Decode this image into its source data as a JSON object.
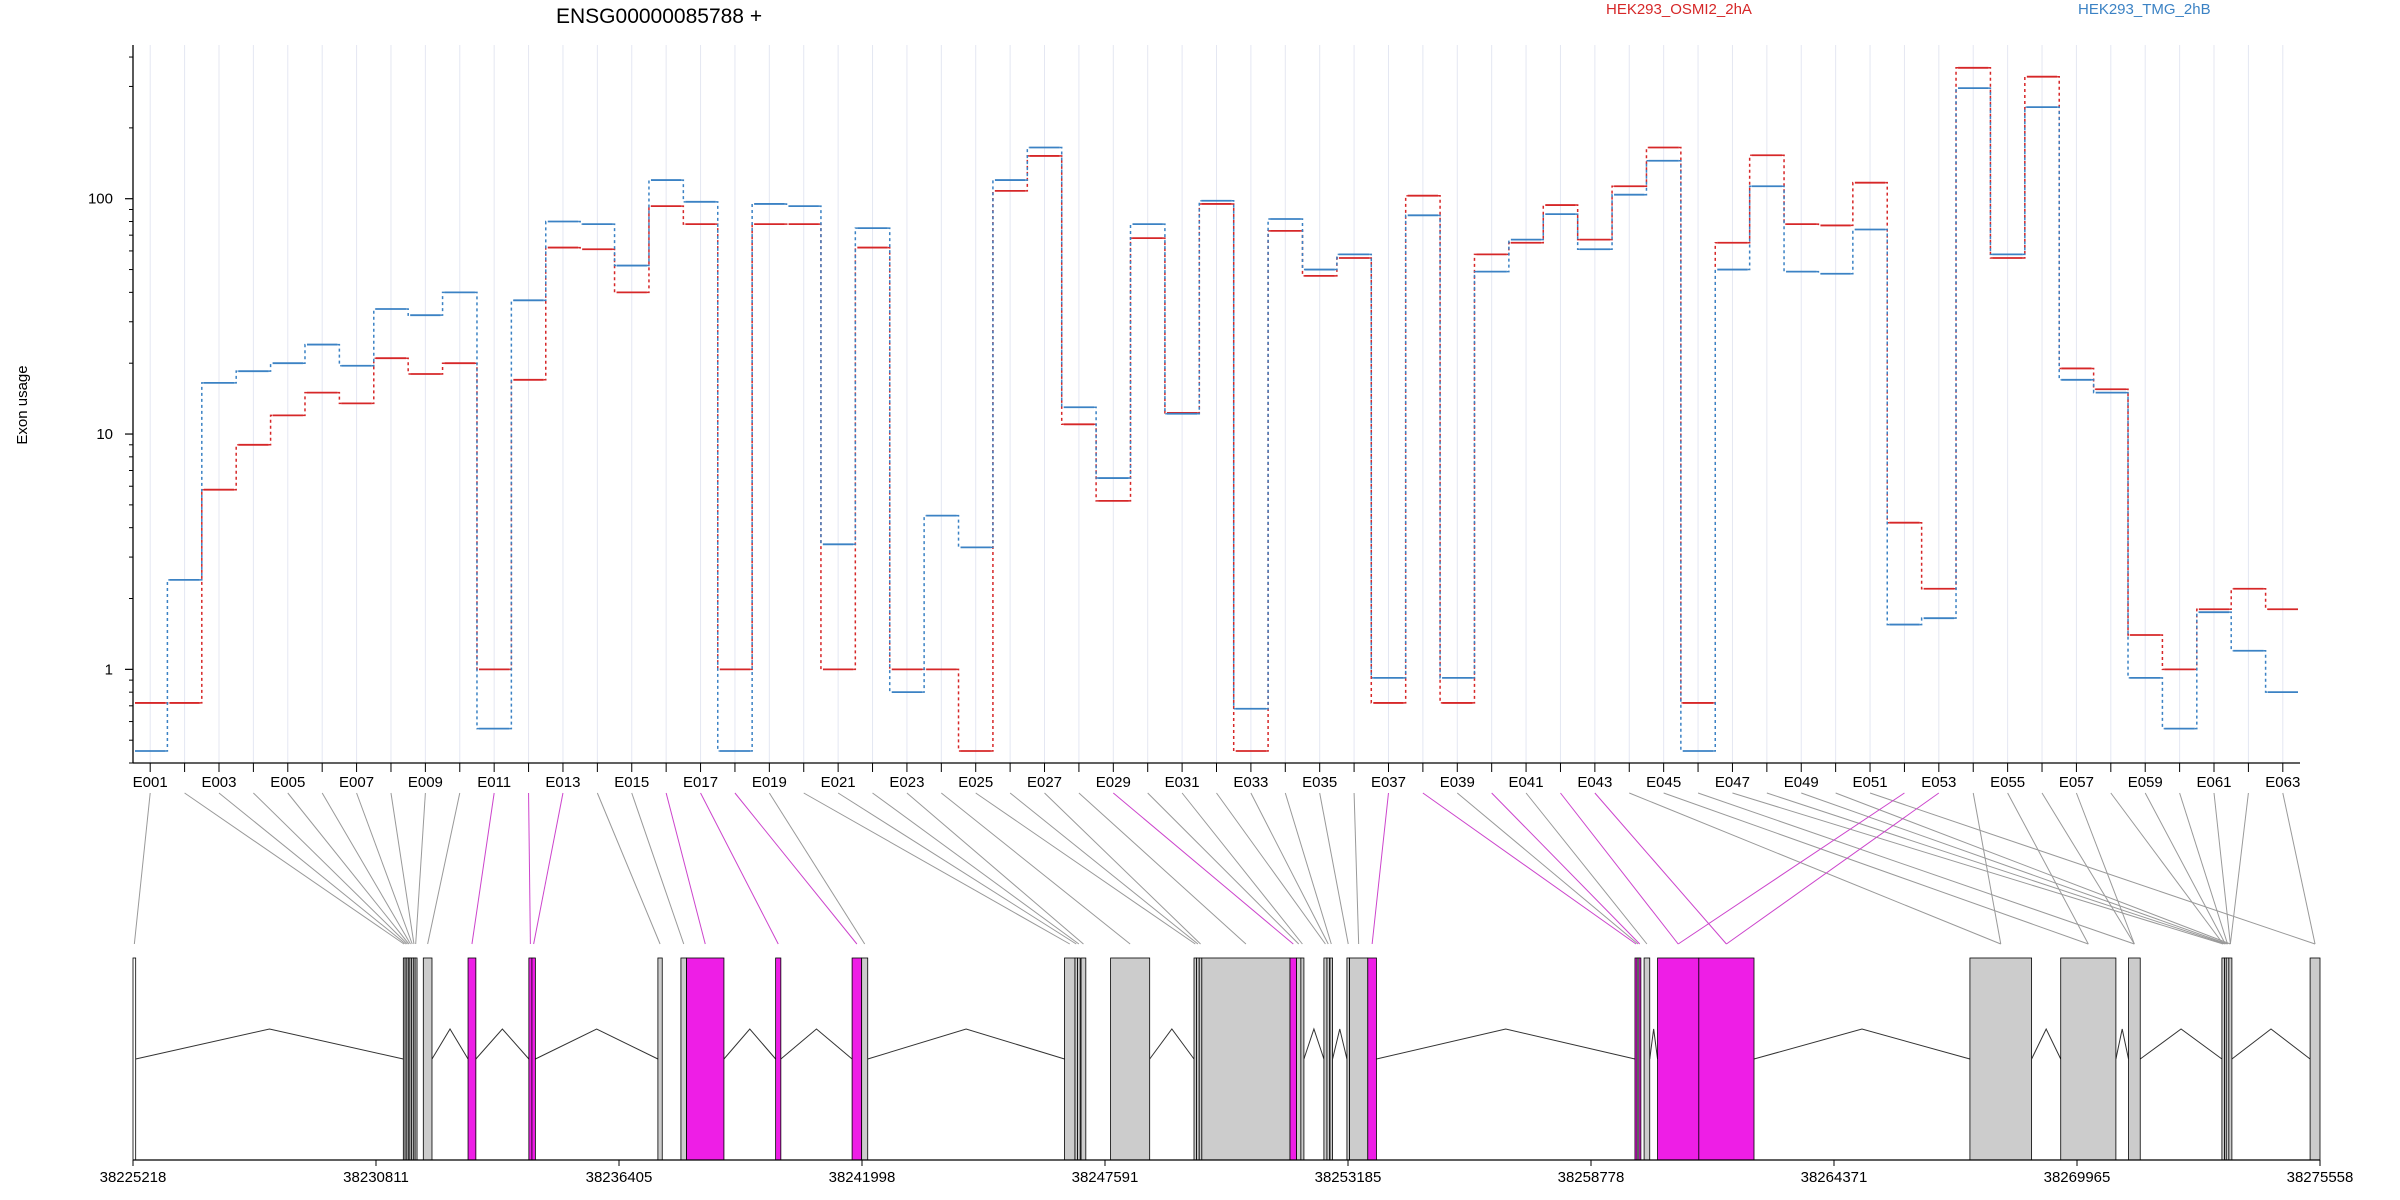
{
  "chart_data": {
    "type": "line",
    "title": "ENSG00000085788 +",
    "ylabel": "Exon usage",
    "y_scale": "log",
    "ylim": [
      0.4,
      450
    ],
    "y_ticks": [
      {
        "value": 1,
        "label": "1"
      },
      {
        "value": 10,
        "label": "10"
      },
      {
        "value": 100,
        "label": "100"
      }
    ],
    "legend_placement": "top",
    "categories": [
      "E001",
      "E002",
      "E003",
      "E004",
      "E005",
      "E006",
      "E007",
      "E008",
      "E009",
      "E010",
      "E011",
      "E012",
      "E013",
      "E014",
      "E015",
      "E016",
      "E017",
      "E018",
      "E019",
      "E020",
      "E021",
      "E022",
      "E023",
      "E024",
      "E025",
      "E026",
      "E027",
      "E028",
      "E029",
      "E030",
      "E031",
      "E032",
      "E033",
      "E034",
      "E035",
      "E036",
      "E037",
      "E038",
      "E039",
      "E040",
      "E041",
      "E042",
      "E043",
      "E044",
      "E045",
      "E046",
      "E047",
      "E048",
      "E049",
      "E050",
      "E051",
      "E052",
      "E053",
      "E054",
      "E055",
      "E056",
      "E057",
      "E058",
      "E059",
      "E060",
      "E061",
      "E062",
      "E063"
    ],
    "x_tick_labels": [
      "E001",
      "E003",
      "E005",
      "E007",
      "E009",
      "E011",
      "E013",
      "E015",
      "E017",
      "E019",
      "E021",
      "E023",
      "E025",
      "E027",
      "E029",
      "E031",
      "E033",
      "E035",
      "E037",
      "E039",
      "E041",
      "E043",
      "E045",
      "E047",
      "E049",
      "E051",
      "E053",
      "E055",
      "E057",
      "E059",
      "E061",
      "E063"
    ],
    "series": [
      {
        "name": "HEK293_OSMI2_2hA",
        "color": "#d62728",
        "values": [
          0.72,
          0.72,
          5.8,
          9,
          12,
          15,
          13.5,
          21,
          18,
          20,
          1,
          17,
          62,
          61,
          40,
          93,
          78,
          1,
          78,
          78,
          1,
          62,
          1,
          1,
          0.45,
          108,
          152,
          11,
          5.2,
          68,
          12.3,
          95,
          0.45,
          73,
          47,
          56,
          0.72,
          103,
          0.72,
          58,
          65,
          94,
          67,
          113,
          165,
          0.72,
          65,
          153,
          78,
          77,
          117,
          4.2,
          2.2,
          360,
          56,
          330,
          19,
          15.5,
          1.4,
          1,
          1.8,
          2.2,
          1.8
        ]
      },
      {
        "name": "HEK293_TMG_2hB",
        "color": "#3b82c4",
        "values": [
          0.45,
          2.4,
          16.5,
          18.5,
          20,
          24,
          19.5,
          34,
          32,
          40,
          0.56,
          37,
          80,
          78,
          52,
          120,
          97,
          0.45,
          95,
          93,
          3.4,
          75,
          0.8,
          4.5,
          3.3,
          120,
          165,
          13,
          6.5,
          78,
          12.2,
          98,
          0.68,
          82,
          50,
          58,
          0.92,
          85,
          0.92,
          49,
          67,
          86,
          61,
          104,
          145,
          0.45,
          50,
          113,
          49,
          48,
          74,
          1.55,
          1.65,
          295,
          58,
          245,
          17,
          15,
          0.92,
          0.56,
          1.75,
          1.2,
          0.8
        ]
      }
    ],
    "genomic_axis": {
      "range": [
        38225218,
        38275558
      ],
      "ticks": [
        38225218,
        38230811,
        38236405,
        38241998,
        38247591,
        38253185,
        38258778,
        38264371,
        38269965,
        38275558
      ],
      "tick_labels": [
        "38225218",
        "38230811",
        "38236405",
        "38241998",
        "38247591",
        "38253185",
        "38258778",
        "38264371",
        "38269965",
        "38275558"
      ]
    },
    "gene_model": {
      "exons": [
        {
          "id": "E001",
          "start": 38225218,
          "end": 38225280,
          "highlight": false
        },
        {
          "id": "E002",
          "start": 38231440,
          "end": 38231470,
          "highlight": false
        },
        {
          "id": "E003",
          "start": 38231480,
          "end": 38231510,
          "highlight": false
        },
        {
          "id": "E004",
          "start": 38231520,
          "end": 38231545,
          "highlight": false
        },
        {
          "id": "E005",
          "start": 38231555,
          "end": 38231580,
          "highlight": false
        },
        {
          "id": "E006",
          "start": 38231590,
          "end": 38231620,
          "highlight": false
        },
        {
          "id": "E007",
          "start": 38231630,
          "end": 38231660,
          "highlight": false
        },
        {
          "id": "E008",
          "start": 38231670,
          "end": 38231700,
          "highlight": false
        },
        {
          "id": "E009",
          "start": 38231710,
          "end": 38231740,
          "highlight": false
        },
        {
          "id": "E010",
          "start": 38231900,
          "end": 38232100,
          "highlight": false
        },
        {
          "id": "E011",
          "start": 38232930,
          "end": 38233110,
          "highlight": true
        },
        {
          "id": "E012",
          "start": 38234330,
          "end": 38234400,
          "highlight": true
        },
        {
          "id": "E013",
          "start": 38234400,
          "end": 38234480,
          "highlight": true
        },
        {
          "id": "E014",
          "start": 38237300,
          "end": 38237400,
          "highlight": false
        },
        {
          "id": "E015",
          "start": 38237830,
          "end": 38237960,
          "highlight": false
        },
        {
          "id": "E016",
          "start": 38237960,
          "end": 38238820,
          "highlight": true
        },
        {
          "id": "E017",
          "start": 38240010,
          "end": 38240130,
          "highlight": true
        },
        {
          "id": "E018",
          "start": 38241770,
          "end": 38241990,
          "highlight": true
        },
        {
          "id": "E019",
          "start": 38241990,
          "end": 38242130,
          "highlight": false
        },
        {
          "id": "E020",
          "start": 38246660,
          "end": 38246900,
          "highlight": false
        },
        {
          "id": "E021",
          "start": 38246900,
          "end": 38246960,
          "highlight": false
        },
        {
          "id": "E022",
          "start": 38246960,
          "end": 38247020,
          "highlight": false
        },
        {
          "id": "E023",
          "start": 38247040,
          "end": 38247150,
          "highlight": false
        },
        {
          "id": "E024",
          "start": 38247720,
          "end": 38248620,
          "highlight": false
        },
        {
          "id": "E025",
          "start": 38249640,
          "end": 38249700,
          "highlight": false
        },
        {
          "id": "E026",
          "start": 38249700,
          "end": 38249760,
          "highlight": false
        },
        {
          "id": "E027",
          "start": 38249760,
          "end": 38249820,
          "highlight": false
        },
        {
          "id": "E028",
          "start": 38249820,
          "end": 38251850,
          "highlight": false
        },
        {
          "id": "E029",
          "start": 38251850,
          "end": 38252000,
          "highlight": true
        },
        {
          "id": "E030",
          "start": 38252000,
          "end": 38252100,
          "highlight": false
        },
        {
          "id": "E031",
          "start": 38252100,
          "end": 38252170,
          "highlight": false
        },
        {
          "id": "E032",
          "start": 38252630,
          "end": 38252700,
          "highlight": false
        },
        {
          "id": "E033",
          "start": 38252700,
          "end": 38252760,
          "highlight": false
        },
        {
          "id": "E034",
          "start": 38252770,
          "end": 38252830,
          "highlight": false
        },
        {
          "id": "E035",
          "start": 38253160,
          "end": 38253220,
          "highlight": false
        },
        {
          "id": "E036",
          "start": 38253220,
          "end": 38253640,
          "highlight": false
        },
        {
          "id": "E037",
          "start": 38253640,
          "end": 38253840,
          "highlight": true
        },
        {
          "id": "E038",
          "start": 38259790,
          "end": 38259840,
          "highlight": true
        },
        {
          "id": "E039",
          "start": 38259840,
          "end": 38259880,
          "highlight": false
        },
        {
          "id": "E040",
          "start": 38259880,
          "end": 38259920,
          "highlight": true
        },
        {
          "id": "E041",
          "start": 38260000,
          "end": 38260130,
          "highlight": false
        },
        {
          "id": "E042",
          "start": 38260310,
          "end": 38261260,
          "highlight": true
        },
        {
          "id": "E043",
          "start": 38261260,
          "end": 38262530,
          "highlight": true
        },
        {
          "id": "E044",
          "start": 38267500,
          "end": 38268920,
          "highlight": false
        },
        {
          "id": "E045",
          "start": 38269590,
          "end": 38270860,
          "highlight": false
        },
        {
          "id": "E046",
          "start": 38271150,
          "end": 38271420,
          "highlight": false
        },
        {
          "id": "E047",
          "start": 38273300,
          "end": 38273360,
          "highlight": false
        },
        {
          "id": "E048",
          "start": 38273360,
          "end": 38273400,
          "highlight": false
        },
        {
          "id": "E049",
          "start": 38273400,
          "end": 38273460,
          "highlight": false
        },
        {
          "id": "E050",
          "start": 38273460,
          "end": 38273530,
          "highlight": false
        },
        {
          "id": "E051",
          "start": 38275330,
          "end": 38275558,
          "highlight": false
        }
      ],
      "introns": [
        [
          38225280,
          38231440
        ],
        [
          38232100,
          38232930
        ],
        [
          38233110,
          38234330
        ],
        [
          38234480,
          38237300
        ],
        [
          38238820,
          38240010
        ],
        [
          38240130,
          38241770
        ],
        [
          38242130,
          38246660
        ],
        [
          38248620,
          38249640
        ],
        [
          38252170,
          38252630
        ],
        [
          38252830,
          38253160
        ],
        [
          38253840,
          38259790
        ],
        [
          38260130,
          38260310
        ],
        [
          38262530,
          38267500
        ],
        [
          38268920,
          38269590
        ],
        [
          38270860,
          38271150
        ],
        [
          38271420,
          38273300
        ],
        [
          38273530,
          38275330
        ]
      ],
      "colors": {
        "exon": "#cccccc",
        "highlight": "#ee1ee6",
        "connector": "#999999",
        "connector_highlight": "#cc44cc",
        "outline": "#000000"
      }
    }
  }
}
